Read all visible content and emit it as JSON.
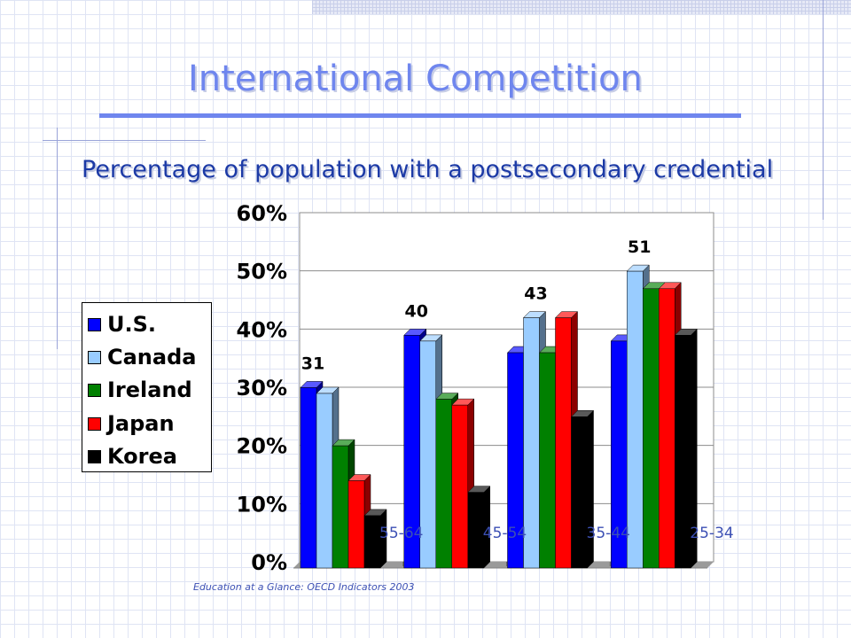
{
  "slide": {
    "title": "International Competition",
    "subtitle": "Percentage of population with a postsecondary credential",
    "source": "Education at a Glance: OECD Indicators 2003",
    "accent_color": "#6f86ee",
    "subtitle_color": "#1c3aa6"
  },
  "chart_data": {
    "type": "bar",
    "title": "",
    "xlabel": "",
    "ylabel": "",
    "ylim": [
      0,
      60
    ],
    "y_ticks": [
      "0%",
      "10%",
      "20%",
      "30%",
      "40%",
      "50%",
      "60%"
    ],
    "grid": true,
    "legend_position": "left",
    "categories": [
      "55-64",
      "45-54",
      "35-44",
      "25-34"
    ],
    "series": [
      {
        "name": "U.S.",
        "color": "#0000ff",
        "values": [
          31,
          40,
          37,
          39
        ]
      },
      {
        "name": "Canada",
        "color": "#99ccff",
        "values": [
          30,
          39,
          43,
          51
        ]
      },
      {
        "name": "Ireland",
        "color": "#008000",
        "values": [
          21,
          29,
          37,
          48
        ]
      },
      {
        "name": "Japan",
        "color": "#ff0000",
        "values": [
          15,
          28,
          43,
          48
        ]
      },
      {
        "name": "Korea",
        "color": "#000000",
        "values": [
          9,
          13,
          26,
          40
        ]
      }
    ],
    "annotations": [
      "31",
      "40",
      "43",
      "51"
    ]
  }
}
